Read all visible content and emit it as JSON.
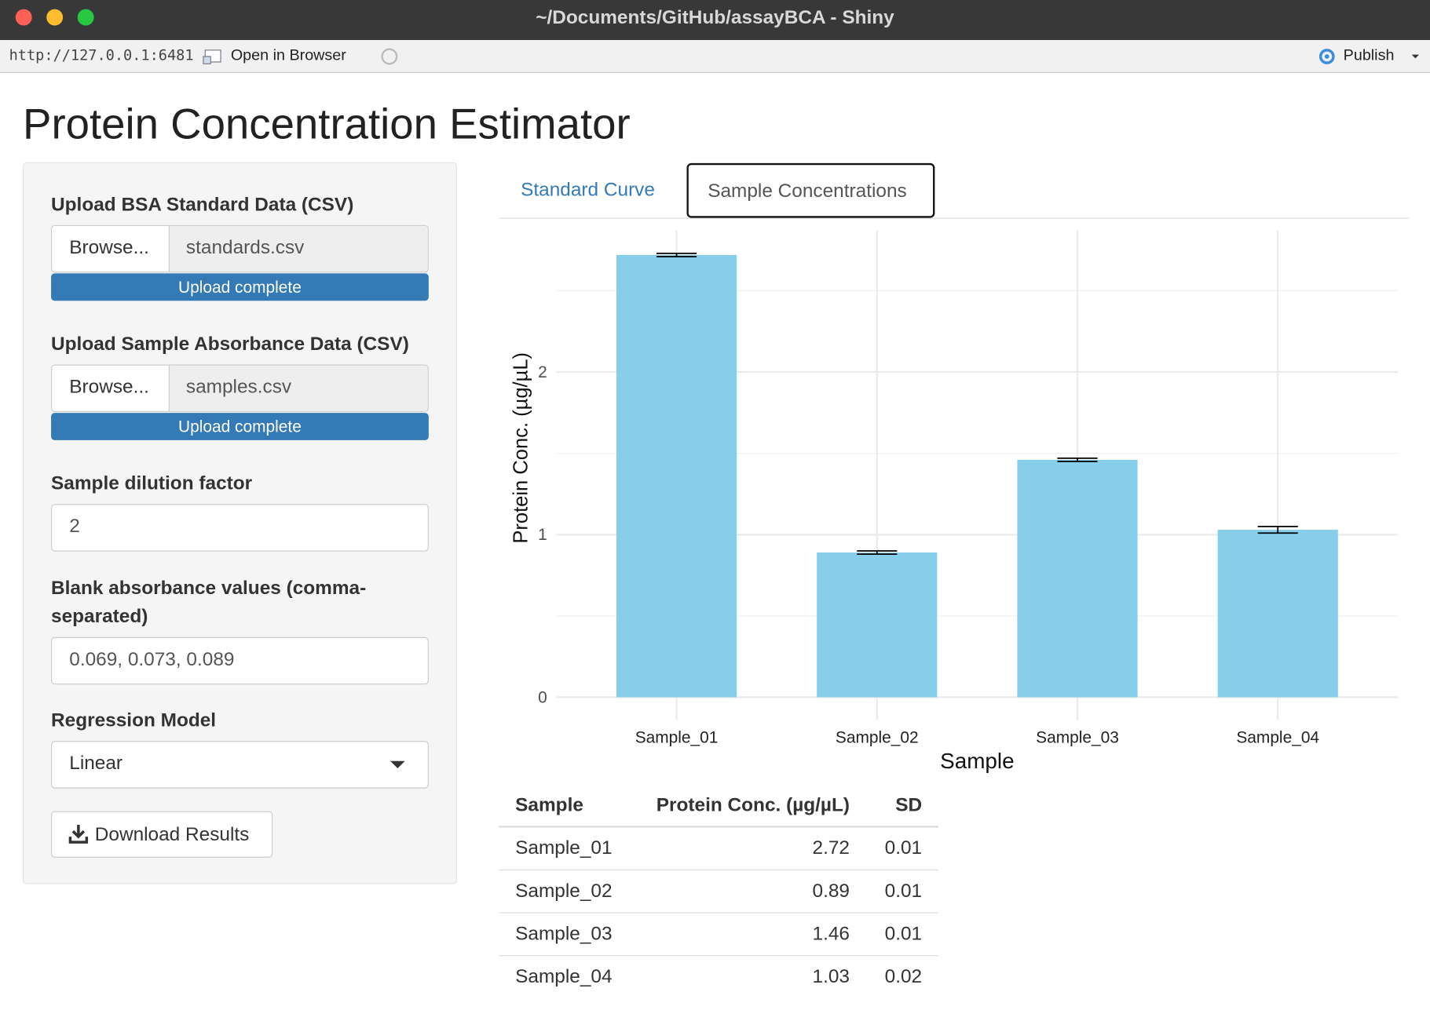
{
  "window": {
    "title": "~/Documents/GitHub/assayBCA - Shiny",
    "url": "http://127.0.0.1:6481",
    "open_in_browser": "Open in Browser",
    "publish": "Publish"
  },
  "app": {
    "title": "Protein Concentration Estimator"
  },
  "sidebar": {
    "standards": {
      "label": "Upload BSA Standard Data (CSV)",
      "button": "Browse...",
      "file": "standards.csv",
      "progress": "Upload complete"
    },
    "samples": {
      "label": "Upload Sample Absorbance Data (CSV)",
      "button": "Browse...",
      "file": "samples.csv",
      "progress": "Upload complete"
    },
    "dilution": {
      "label": "Sample dilution factor",
      "value": "2"
    },
    "blanks": {
      "label": "Blank absorbance values (comma-separated)",
      "value": "0.069, 0.073, 0.089"
    },
    "model": {
      "label": "Regression Model",
      "value": "Linear"
    },
    "download": "Download Results"
  },
  "tabs": [
    "Standard Curve",
    "Sample Concentrations"
  ],
  "chart_data": {
    "type": "bar",
    "categories": [
      "Sample_01",
      "Sample_02",
      "Sample_03",
      "Sample_04"
    ],
    "values": [
      2.72,
      0.89,
      1.46,
      1.03
    ],
    "errors": [
      0.01,
      0.01,
      0.01,
      0.02
    ],
    "color": "#87ceeb",
    "y_label": "Protein Conc. (µg/µL)",
    "x_label": "Sample",
    "ylim": [
      -0.14,
      2.87
    ],
    "yticks": [
      0,
      1,
      2
    ],
    "y_minor_grid": [
      0.5,
      1.5,
      2.5
    ],
    "grid": true
  },
  "table": {
    "header": [
      "Sample",
      "Protein Conc. (µg/µL)",
      "SD"
    ],
    "rows": [
      [
        "Sample_01",
        "2.72",
        "0.01"
      ],
      [
        "Sample_02",
        "0.89",
        "0.01"
      ],
      [
        "Sample_03",
        "1.46",
        "0.01"
      ],
      [
        "Sample_04",
        "1.03",
        "0.02"
      ]
    ]
  }
}
